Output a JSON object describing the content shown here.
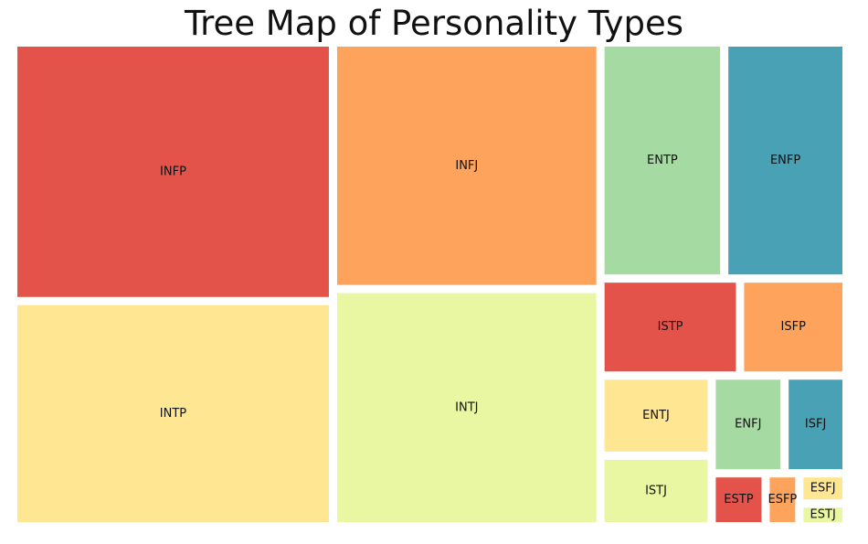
{
  "chart_data": {
    "type": "treemap",
    "title": "Tree Map of Personality Types",
    "palette": [
      "#e3534a",
      "#fda35c",
      "#fee693",
      "#e9f7a3",
      "#a5da a3",
      "#49a1b5"
    ],
    "items": [
      {
        "label": "INFP",
        "value": 232,
        "color": "#e3534a"
      },
      {
        "label": "INFJ",
        "value": 185,
        "color": "#fda35c"
      },
      {
        "label": "INTP",
        "value": 202,
        "color": "#fee693"
      },
      {
        "label": "INTJ",
        "value": 178,
        "color": "#e9f7a3"
      },
      {
        "label": "ENTP",
        "value": 82,
        "color": "#a5daa3"
      },
      {
        "label": "ENFP",
        "value": 81,
        "color": "#49a1b5"
      },
      {
        "label": "ISTP",
        "value": 38,
        "color": "#e3534a"
      },
      {
        "label": "ISFP",
        "value": 29,
        "color": "#fda35c"
      },
      {
        "label": "ENTJ",
        "value": 25,
        "color": "#fee693"
      },
      {
        "label": "ISTJ",
        "value": 22,
        "color": "#e9f7a3"
      },
      {
        "label": "ENFJ",
        "value": 20,
        "color": "#a5daa3"
      },
      {
        "label": "ISFJ",
        "value": 17,
        "color": "#49a1b5"
      },
      {
        "label": "ESTP",
        "value": 8,
        "color": "#e3534a"
      },
      {
        "label": "ESFP",
        "value": 5,
        "color": "#fda35c"
      },
      {
        "label": "ESFJ",
        "value": 4,
        "color": "#fee693"
      },
      {
        "label": "ESTJ",
        "value": 3,
        "color": "#e9f7a3"
      }
    ]
  }
}
